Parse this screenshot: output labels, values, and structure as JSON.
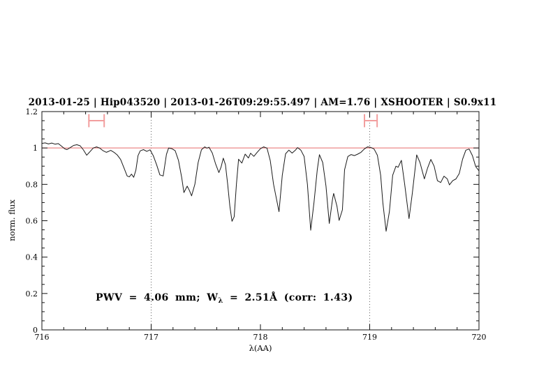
{
  "colors": {
    "title": "#0f0fdc",
    "annotation": "#0f0fdc",
    "spectrum": "#1a1a1a",
    "continuum": "#e86a6a",
    "marker": "#f29e9e",
    "vline": "#606060",
    "frame": "#111111"
  },
  "annotation": {
    "part1": "PWV = 4.06 mm; W",
    "sub": "λ",
    "part2": " = 2.51Å (corr: 1.43)"
  },
  "chart_data": {
    "type": "line",
    "title": "2013-01-25 | Hip043520 | 2013-01-26T09:29:55.497 | AM=1.76 | XSHOOTER | S0.9x11",
    "xlabel": "λ(AA)",
    "ylabel": "norm. flux",
    "xlim": [
      716,
      720
    ],
    "ylim": [
      0,
      1.2
    ],
    "grid": false,
    "legend": null,
    "xticks": {
      "major": [
        716,
        717,
        718,
        719,
        720
      ],
      "labels": [
        "716",
        "717",
        "718",
        "719",
        "720"
      ],
      "minor_step": 0.2
    },
    "yticks": {
      "major": [
        0,
        0.2,
        0.4,
        0.6,
        0.8,
        1,
        1.2
      ],
      "labels": [
        "0",
        "0.2",
        "0.4",
        "0.6",
        "0.8",
        "1",
        "1.2"
      ],
      "minor_step": 0.05
    },
    "vlines": [
      717,
      719
    ],
    "continuum_level": 1.0,
    "range_markers": [
      {
        "x": 716.5,
        "y": 1.15,
        "half_width": 0.07,
        "cap_half": 0.036
      },
      {
        "x": 719.01,
        "y": 1.15,
        "half_width": 0.058,
        "cap_half": 0.036
      }
    ],
    "series": [
      {
        "name": "telluric-spectrum",
        "points": [
          [
            716.0,
            1.025
          ],
          [
            716.03,
            1.028
          ],
          [
            716.06,
            1.022
          ],
          [
            716.09,
            1.027
          ],
          [
            716.12,
            1.021
          ],
          [
            716.15,
            1.024
          ],
          [
            716.18,
            1.01
          ],
          [
            716.21,
            0.995
          ],
          [
            716.23,
            0.991
          ],
          [
            716.26,
            1.002
          ],
          [
            716.29,
            1.014
          ],
          [
            716.32,
            1.018
          ],
          [
            716.35,
            1.012
          ],
          [
            716.38,
            0.989
          ],
          [
            716.41,
            0.96
          ],
          [
            716.44,
            0.98
          ],
          [
            716.47,
            1.0
          ],
          [
            716.5,
            1.006
          ],
          [
            716.53,
            0.999
          ],
          [
            716.56,
            0.985
          ],
          [
            716.59,
            0.976
          ],
          [
            716.61,
            0.981
          ],
          [
            716.63,
            0.987
          ],
          [
            716.66,
            0.976
          ],
          [
            716.69,
            0.961
          ],
          [
            716.72,
            0.937
          ],
          [
            716.75,
            0.892
          ],
          [
            716.78,
            0.846
          ],
          [
            716.8,
            0.841
          ],
          [
            716.82,
            0.856
          ],
          [
            716.84,
            0.839
          ],
          [
            716.86,
            0.878
          ],
          [
            716.88,
            0.958
          ],
          [
            716.9,
            0.984
          ],
          [
            716.93,
            0.991
          ],
          [
            716.96,
            0.981
          ],
          [
            716.99,
            0.99
          ],
          [
            717.02,
            0.957
          ],
          [
            717.05,
            0.908
          ],
          [
            717.08,
            0.852
          ],
          [
            717.11,
            0.846
          ],
          [
            717.14,
            0.965
          ],
          [
            717.16,
            1.0
          ],
          [
            717.19,
            0.996
          ],
          [
            717.22,
            0.985
          ],
          [
            717.25,
            0.932
          ],
          [
            717.28,
            0.836
          ],
          [
            717.3,
            0.755
          ],
          [
            717.33,
            0.79
          ],
          [
            717.35,
            0.766
          ],
          [
            717.37,
            0.737
          ],
          [
            717.4,
            0.8
          ],
          [
            717.43,
            0.92
          ],
          [
            717.46,
            0.99
          ],
          [
            717.49,
            1.006
          ],
          [
            717.51,
            0.999
          ],
          [
            717.53,
            1.004
          ],
          [
            717.56,
            0.972
          ],
          [
            717.59,
            0.912
          ],
          [
            717.62,
            0.865
          ],
          [
            717.64,
            0.896
          ],
          [
            717.66,
            0.944
          ],
          [
            717.68,
            0.908
          ],
          [
            717.7,
            0.8
          ],
          [
            717.72,
            0.68
          ],
          [
            717.74,
            0.597
          ],
          [
            717.76,
            0.622
          ],
          [
            717.78,
            0.8
          ],
          [
            717.8,
            0.938
          ],
          [
            717.83,
            0.917
          ],
          [
            717.86,
            0.966
          ],
          [
            717.89,
            0.945
          ],
          [
            717.91,
            0.971
          ],
          [
            717.94,
            0.954
          ],
          [
            717.97,
            0.976
          ],
          [
            718.0,
            0.996
          ],
          [
            718.03,
            1.006
          ],
          [
            718.06,
            0.999
          ],
          [
            718.09,
            0.93
          ],
          [
            718.12,
            0.8
          ],
          [
            718.17,
            0.65
          ],
          [
            718.2,
            0.85
          ],
          [
            718.23,
            0.968
          ],
          [
            718.26,
            0.988
          ],
          [
            718.29,
            0.972
          ],
          [
            718.32,
            0.988
          ],
          [
            718.34,
            1.002
          ],
          [
            718.37,
            0.988
          ],
          [
            718.4,
            0.953
          ],
          [
            718.43,
            0.8
          ],
          [
            718.46,
            0.548
          ],
          [
            718.49,
            0.7
          ],
          [
            718.52,
            0.88
          ],
          [
            718.54,
            0.963
          ],
          [
            718.57,
            0.92
          ],
          [
            718.6,
            0.79
          ],
          [
            718.63,
            0.585
          ],
          [
            718.66,
            0.72
          ],
          [
            718.67,
            0.75
          ],
          [
            718.7,
            0.68
          ],
          [
            718.72,
            0.602
          ],
          [
            718.75,
            0.66
          ],
          [
            718.77,
            0.88
          ],
          [
            718.8,
            0.953
          ],
          [
            718.83,
            0.964
          ],
          [
            718.86,
            0.958
          ],
          [
            718.89,
            0.966
          ],
          [
            718.92,
            0.976
          ],
          [
            718.95,
            0.994
          ],
          [
            718.98,
            1.006
          ],
          [
            719.01,
            1.003
          ],
          [
            719.04,
            0.994
          ],
          [
            719.07,
            0.96
          ],
          [
            719.1,
            0.85
          ],
          [
            719.12,
            0.7
          ],
          [
            719.15,
            0.542
          ],
          [
            719.18,
            0.65
          ],
          [
            719.21,
            0.85
          ],
          [
            719.24,
            0.9
          ],
          [
            719.26,
            0.894
          ],
          [
            719.29,
            0.932
          ],
          [
            719.32,
            0.8
          ],
          [
            719.36,
            0.612
          ],
          [
            719.39,
            0.75
          ],
          [
            719.43,
            0.962
          ],
          [
            719.46,
            0.92
          ],
          [
            719.5,
            0.83
          ],
          [
            719.53,
            0.89
          ],
          [
            719.56,
            0.937
          ],
          [
            719.59,
            0.9
          ],
          [
            719.62,
            0.82
          ],
          [
            719.65,
            0.81
          ],
          [
            719.68,
            0.845
          ],
          [
            719.71,
            0.83
          ],
          [
            719.73,
            0.797
          ],
          [
            719.76,
            0.82
          ],
          [
            719.79,
            0.83
          ],
          [
            719.82,
            0.86
          ],
          [
            719.85,
            0.938
          ],
          [
            719.88,
            0.988
          ],
          [
            719.91,
            0.994
          ],
          [
            719.94,
            0.958
          ],
          [
            719.97,
            0.898
          ],
          [
            720.0,
            0.874
          ]
        ]
      }
    ]
  }
}
